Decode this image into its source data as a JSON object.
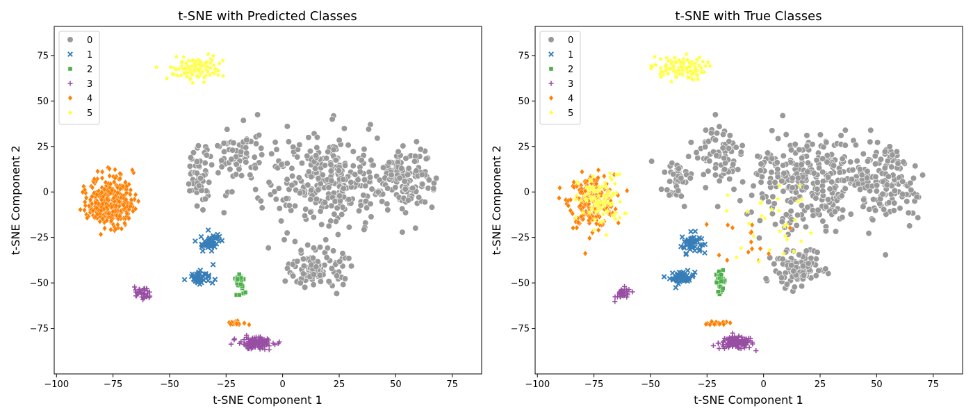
{
  "chart_data": [
    {
      "type": "scatter",
      "title": "t-SNE with Predicted Classes",
      "xlabel": "t-SNE Component 1",
      "ylabel": "t-SNE Component 2",
      "xlim": [
        -101,
        88
      ],
      "ylim": [
        -100,
        91
      ],
      "xticks": [
        "−100",
        "−75",
        "−50",
        "−25",
        "0",
        "25",
        "50",
        "75"
      ],
      "xtick_values": [
        -100,
        -75,
        -50,
        -25,
        0,
        25,
        50,
        75
      ],
      "yticks": [
        "−75",
        "−50",
        "−25",
        "0",
        "25",
        "50",
        "75"
      ],
      "ytick_values": [
        -75,
        -50,
        -25,
        0,
        25,
        50,
        75
      ],
      "grid": false,
      "legend_position": "top-left",
      "legend": [
        {
          "label": "0",
          "marker": "circle",
          "color": "#999999"
        },
        {
          "label": "1",
          "marker": "x",
          "color": "#377eb8"
        },
        {
          "label": "2",
          "marker": "square",
          "color": "#4daf4a"
        },
        {
          "label": "3",
          "marker": "plus",
          "color": "#984ea3"
        },
        {
          "label": "4",
          "marker": "diamond",
          "color": "#ff7f00"
        },
        {
          "label": "5",
          "marker": "star",
          "color": "#ffff33"
        }
      ],
      "clusters": [
        {
          "class": "0",
          "count": 300,
          "cx": 20,
          "cy": 5,
          "sx": 26,
          "sy": 24
        },
        {
          "class": "0",
          "count": 130,
          "cx": 55,
          "cy": 5,
          "sx": 11,
          "sy": 18
        },
        {
          "class": "0",
          "count": 110,
          "cx": 15,
          "cy": -42,
          "sx": 11,
          "sy": 9
        },
        {
          "class": "0",
          "count": 70,
          "cx": -20,
          "cy": 20,
          "sx": 11,
          "sy": 15
        },
        {
          "class": "0",
          "count": 45,
          "cx": -38,
          "cy": 8,
          "sx": 6,
          "sy": 14
        },
        {
          "class": "1",
          "count": 45,
          "cx": -32,
          "cy": -28,
          "sx": 4,
          "sy": 5
        },
        {
          "class": "1",
          "count": 45,
          "cx": -36,
          "cy": -47,
          "sx": 5,
          "sy": 3
        },
        {
          "class": "2",
          "count": 35,
          "cx": -19,
          "cy": -49,
          "sx": 2,
          "sy": 5
        },
        {
          "class": "3",
          "count": 120,
          "cx": -12,
          "cy": -83,
          "sx": 7,
          "sy": 3
        },
        {
          "class": "3",
          "count": 35,
          "cx": -62,
          "cy": -56,
          "sx": 3,
          "sy": 3
        },
        {
          "class": "4",
          "count": 330,
          "cx": -76,
          "cy": -5,
          "sx": 9,
          "sy": 13
        },
        {
          "class": "4",
          "count": 20,
          "cx": -20,
          "cy": -72,
          "sx": 4,
          "sy": 1
        },
        {
          "class": "5",
          "count": 110,
          "cx": -38,
          "cy": 68,
          "sx": 11,
          "sy": 6
        }
      ]
    },
    {
      "type": "scatter",
      "title": "t-SNE with True Classes",
      "xlabel": "t-SNE Component 1",
      "ylabel": "t-SNE Component 2",
      "xlim": [
        -101,
        88
      ],
      "ylim": [
        -100,
        91
      ],
      "xticks": [
        "−100",
        "−75",
        "−50",
        "−25",
        "0",
        "25",
        "50",
        "75"
      ],
      "xtick_values": [
        -100,
        -75,
        -50,
        -25,
        0,
        25,
        50,
        75
      ],
      "yticks": [
        "−75",
        "−50",
        "−25",
        "0",
        "25",
        "50",
        "75"
      ],
      "ytick_values": [
        -75,
        -50,
        -25,
        0,
        25,
        50,
        75
      ],
      "grid": false,
      "legend_position": "top-left",
      "legend": [
        {
          "label": "0",
          "marker": "circle",
          "color": "#999999"
        },
        {
          "label": "1",
          "marker": "x",
          "color": "#377eb8"
        },
        {
          "label": "2",
          "marker": "square",
          "color": "#4daf4a"
        },
        {
          "label": "3",
          "marker": "plus",
          "color": "#984ea3"
        },
        {
          "label": "4",
          "marker": "diamond",
          "color": "#ff7f00"
        },
        {
          "label": "5",
          "marker": "star",
          "color": "#ffff33"
        }
      ],
      "clusters": [
        {
          "class": "0",
          "count": 300,
          "cx": 20,
          "cy": 5,
          "sx": 26,
          "sy": 24
        },
        {
          "class": "0",
          "count": 130,
          "cx": 55,
          "cy": 5,
          "sx": 11,
          "sy": 18
        },
        {
          "class": "0",
          "count": 110,
          "cx": 15,
          "cy": -42,
          "sx": 11,
          "sy": 9
        },
        {
          "class": "0",
          "count": 70,
          "cx": -20,
          "cy": 20,
          "sx": 11,
          "sy": 15
        },
        {
          "class": "0",
          "count": 40,
          "cx": -38,
          "cy": 8,
          "sx": 6,
          "sy": 14
        },
        {
          "class": "1",
          "count": 45,
          "cx": -32,
          "cy": -28,
          "sx": 4,
          "sy": 5
        },
        {
          "class": "1",
          "count": 45,
          "cx": -36,
          "cy": -47,
          "sx": 5,
          "sy": 3
        },
        {
          "class": "2",
          "count": 35,
          "cx": -19,
          "cy": -49,
          "sx": 2,
          "sy": 5
        },
        {
          "class": "3",
          "count": 120,
          "cx": -12,
          "cy": -83,
          "sx": 7,
          "sy": 3
        },
        {
          "class": "3",
          "count": 35,
          "cx": -62,
          "cy": -56,
          "sx": 3,
          "sy": 3
        },
        {
          "class": "4",
          "count": 230,
          "cx": -76,
          "cy": -5,
          "sx": 9,
          "sy": 13
        },
        {
          "class": "4",
          "count": 20,
          "cx": -20,
          "cy": -72,
          "sx": 4,
          "sy": 1
        },
        {
          "class": "4",
          "count": 15,
          "cx": -5,
          "cy": -25,
          "sx": 14,
          "sy": 12
        },
        {
          "class": "5",
          "count": 110,
          "cx": -38,
          "cy": 68,
          "sx": 11,
          "sy": 6
        },
        {
          "class": "5",
          "count": 100,
          "cx": -72,
          "cy": -5,
          "sx": 9,
          "sy": 13
        },
        {
          "class": "5",
          "count": 30,
          "cx": 5,
          "cy": -15,
          "sx": 20,
          "sy": 20
        }
      ]
    }
  ]
}
